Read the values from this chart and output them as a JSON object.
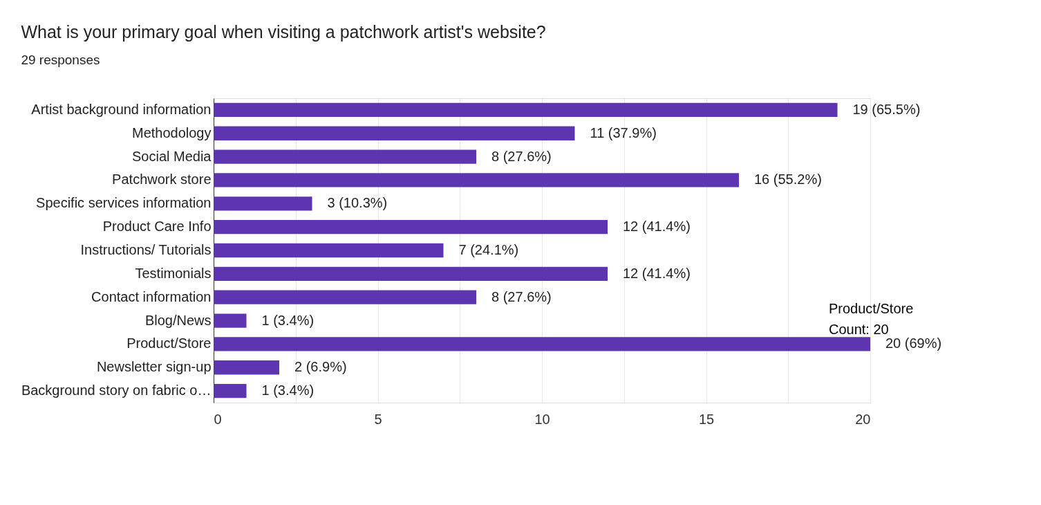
{
  "chart_data": {
    "type": "bar",
    "orientation": "horizontal",
    "title": "What is your primary goal when visiting a patchwork artist's website?",
    "subtitle": "29 responses",
    "categories": [
      "Artist background information",
      "Methodology",
      "Social Media",
      "Patchwork store",
      "Specific services information",
      "Product Care Info",
      "Instructions/ Tutorials",
      "Testimonials",
      "Contact information",
      "Blog/News",
      "Product/Store",
      "Newsletter sign-up",
      "Background story on fabric o…"
    ],
    "values": [
      19,
      11,
      8,
      16,
      3,
      12,
      7,
      12,
      8,
      1,
      20,
      2,
      1
    ],
    "value_labels": [
      "19 (65.5%)",
      "11 (37.9%)",
      "8 (27.6%)",
      "16 (55.2%)",
      "3 (10.3%)",
      "12 (41.4%)",
      "7 (24.1%)",
      "12 (41.4%)",
      "8 (27.6%)",
      "1 (3.4%)",
      "20 (69%)",
      "2 (6.9%)",
      "1 (3.4%)"
    ],
    "color": "#5e35b1",
    "xlim": [
      0,
      20
    ],
    "xticks": [
      0,
      {
        "value": 2.5,
        "label": null
      },
      5,
      {
        "value": 7.5,
        "label": null
      },
      10,
      {
        "value": 12.5,
        "label": null
      },
      15,
      {
        "value": 17.5,
        "label": null
      },
      20
    ],
    "grid": "x",
    "annotations": [
      {
        "text": "Product/Store\nCount: 20",
        "x": 20,
        "y": "Product/Store"
      }
    ]
  }
}
